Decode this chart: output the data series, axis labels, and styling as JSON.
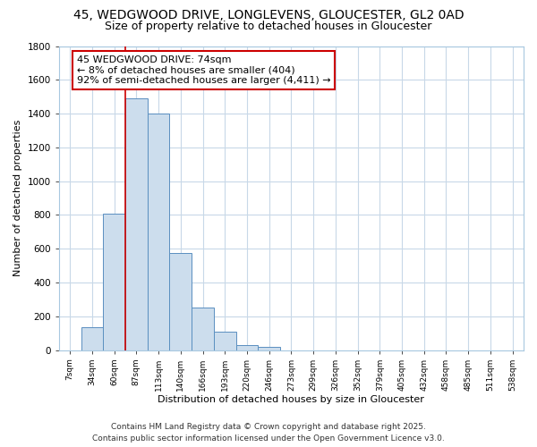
{
  "title1": "45, WEDGWOOD DRIVE, LONGLEVENS, GLOUCESTER, GL2 0AD",
  "title2": "Size of property relative to detached houses in Gloucester",
  "xlabel": "Distribution of detached houses by size in Gloucester",
  "ylabel": "Number of detached properties",
  "bar_labels": [
    "7sqm",
    "34sqm",
    "60sqm",
    "87sqm",
    "113sqm",
    "140sqm",
    "166sqm",
    "193sqm",
    "220sqm",
    "246sqm",
    "273sqm",
    "299sqm",
    "326sqm",
    "352sqm",
    "379sqm",
    "405sqm",
    "432sqm",
    "458sqm",
    "485sqm",
    "511sqm",
    "538sqm"
  ],
  "bar_values": [
    0,
    135,
    810,
    1490,
    1400,
    575,
    250,
    110,
    30,
    18,
    0,
    0,
    0,
    0,
    0,
    0,
    0,
    0,
    0,
    0,
    0
  ],
  "bar_color": "#ccdded",
  "bar_edge_color": "#5a8fc0",
  "vline_x": 2.5,
  "vline_color": "#cc0000",
  "annotation_title": "45 WEDGWOOD DRIVE: 74sqm",
  "annotation_line1": "← 8% of detached houses are smaller (404)",
  "annotation_line2": "92% of semi-detached houses are larger (4,411) →",
  "annotation_box_color": "#ffffff",
  "annotation_box_edge": "#cc0000",
  "ylim": [
    0,
    1800
  ],
  "yticks": [
    0,
    200,
    400,
    600,
    800,
    1000,
    1200,
    1400,
    1600,
    1800
  ],
  "footer1": "Contains HM Land Registry data © Crown copyright and database right 2025.",
  "footer2": "Contains public sector information licensed under the Open Government Licence v3.0.",
  "bg_color": "#ffffff",
  "grid_color": "#c8d8e8",
  "title1_fontsize": 10,
  "title2_fontsize": 9,
  "annotation_fontsize": 8,
  "footer_fontsize": 6.5
}
